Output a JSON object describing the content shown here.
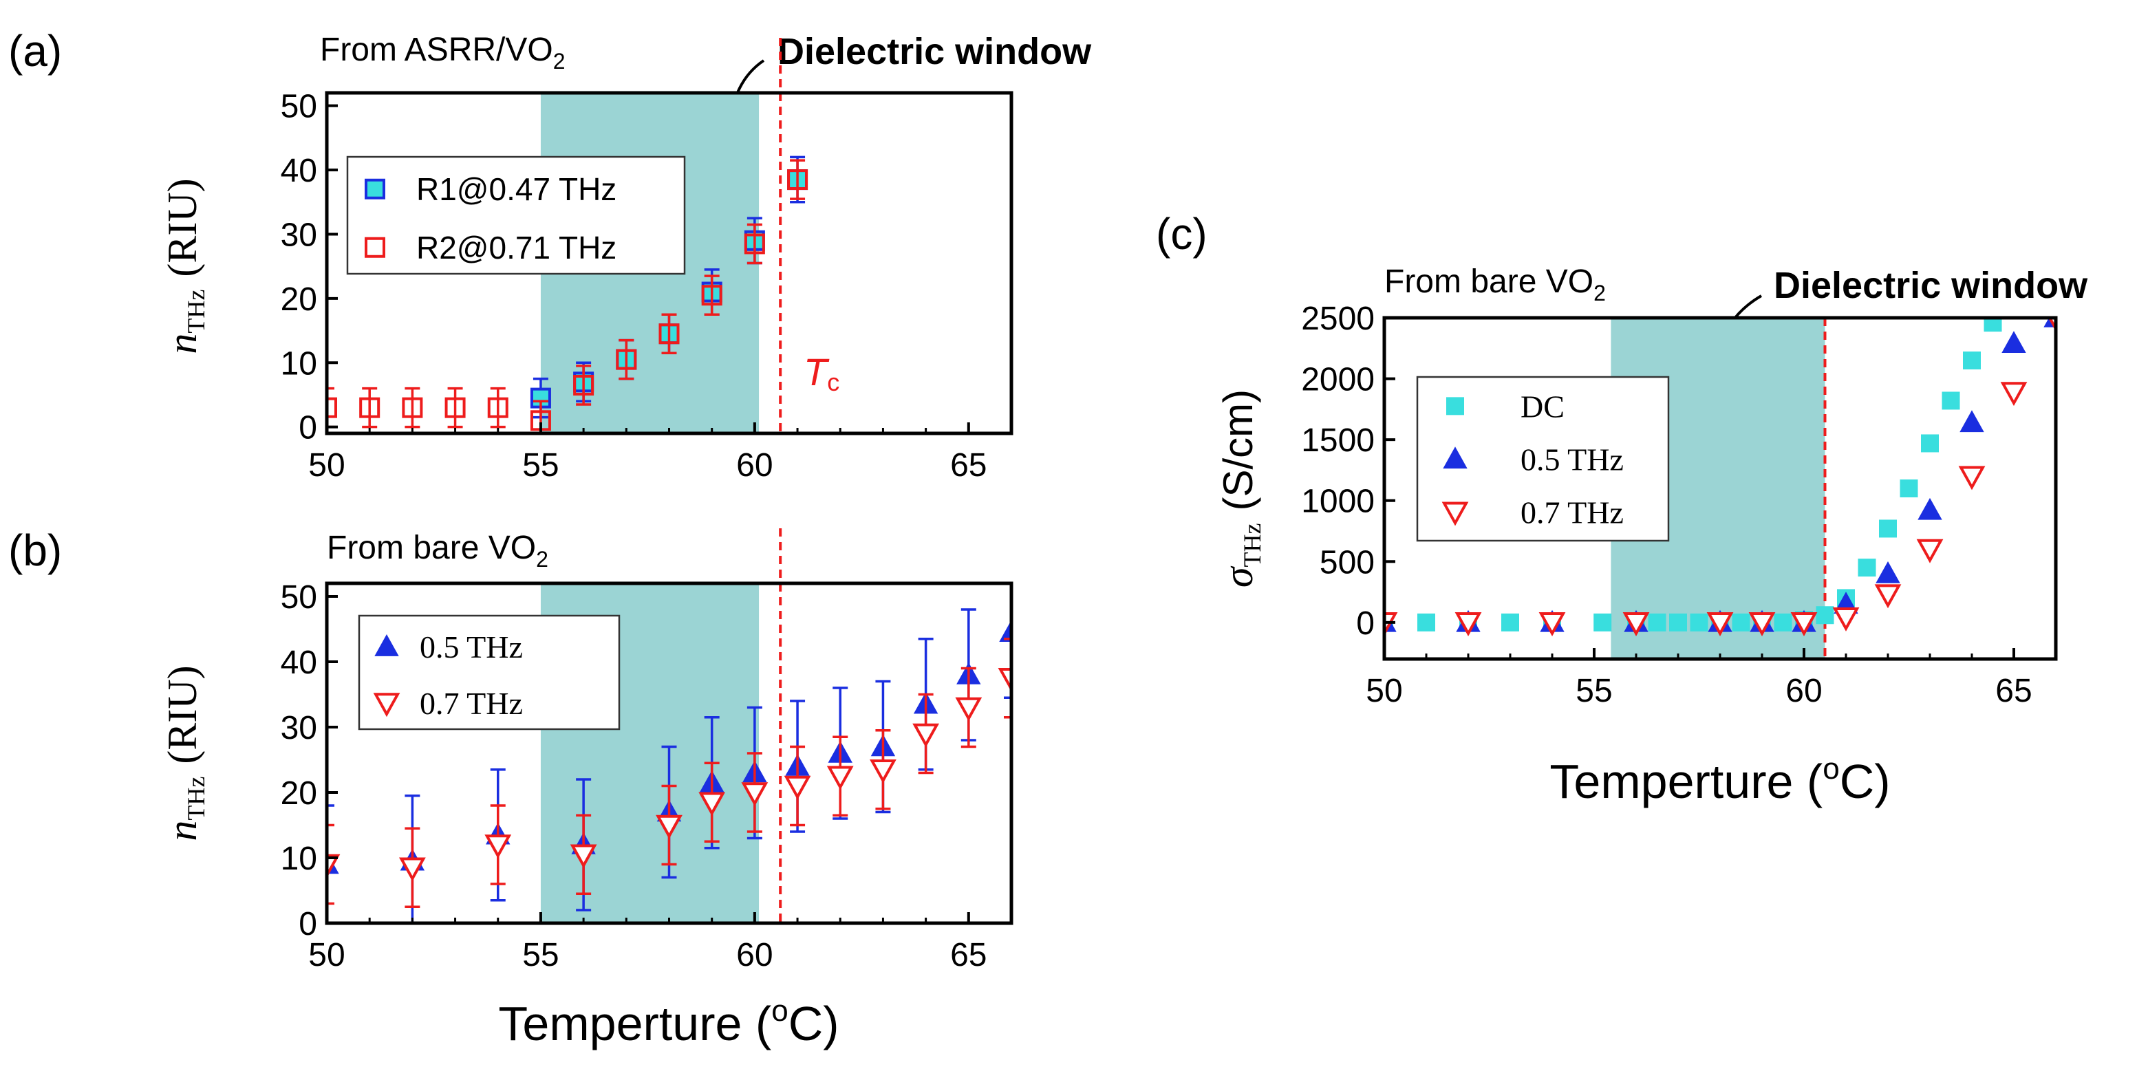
{
  "colors": {
    "window": "#9bd4d4",
    "teal_text": "#149393",
    "blue": "#1a2ee0",
    "red": "#ee1c1c",
    "cyan": "#39dede",
    "frame": "#000000"
  },
  "chart_data": [
    {
      "id": "a",
      "panel_label": "(a)",
      "subtitle": "From ASRR/VO",
      "subtitle_sub": "2",
      "annotation": "Dielectric window",
      "tc_label": "T",
      "tc_sub": "c",
      "type": "scatter",
      "xlim": [
        50,
        66
      ],
      "ylim": [
        -1,
        52
      ],
      "xticks": [
        50,
        55,
        60,
        65
      ],
      "yticks": [
        0,
        10,
        20,
        30,
        40,
        50
      ],
      "xlabel": "",
      "ylabel": "n",
      "ylabel_sub": "THz",
      "ylabel_unit": "(RIU)",
      "window": [
        55,
        60.1
      ],
      "tc": 60.6,
      "series": [
        {
          "name": "R1@0.47 THz",
          "marker": "square",
          "x": [
            55,
            56,
            57,
            58,
            59,
            60,
            61
          ],
          "y": [
            4.5,
            7,
            10.5,
            14.5,
            21,
            29,
            38.5
          ],
          "err": [
            3,
            3,
            3,
            3,
            3.5,
            3.5,
            3.5
          ]
        },
        {
          "name": "R2@0.71 THz",
          "marker": "square",
          "x": [
            50,
            51,
            52,
            53,
            54,
            55,
            56,
            57,
            58,
            59,
            60,
            61
          ],
          "y": [
            3,
            3,
            3,
            3,
            3,
            1,
            6.5,
            10.5,
            14.5,
            20.5,
            28.5,
            38.5
          ],
          "err": [
            3,
            3,
            3,
            3,
            3,
            3,
            3,
            3,
            3,
            3,
            3,
            3
          ]
        }
      ]
    },
    {
      "id": "b",
      "panel_label": "(b)",
      "subtitle": "From bare VO",
      "subtitle_sub": "2",
      "type": "scatter",
      "xlim": [
        50,
        66
      ],
      "ylim": [
        0,
        52
      ],
      "xticks": [
        50,
        55,
        60,
        65
      ],
      "yticks": [
        0,
        10,
        20,
        30,
        40,
        50
      ],
      "xlabel": "Temperture (",
      "xlabel_sup": "o",
      "xlabel_end": "C)",
      "ylabel": "n",
      "ylabel_sub": "THz",
      "ylabel_unit": "(RIU)",
      "window": [
        55,
        60.1
      ],
      "tc": 60.6,
      "series": [
        {
          "name": "0.5 THz",
          "marker": "triangle-up",
          "x": [
            50,
            52,
            54,
            56,
            58,
            59,
            60,
            61,
            62,
            63,
            64,
            65,
            66
          ],
          "y": [
            9,
            9.5,
            13.5,
            12,
            17,
            21.5,
            23,
            24,
            26,
            27,
            33.5,
            38,
            44.5
          ],
          "err": [
            9,
            10,
            10,
            10,
            10,
            10,
            10,
            10,
            10,
            10,
            10,
            10,
            10
          ]
        },
        {
          "name": "0.7 THz",
          "marker": "triangle-down",
          "x": [
            50,
            52,
            54,
            56,
            58,
            59,
            60,
            61,
            62,
            63,
            64,
            65,
            66
          ],
          "y": [
            9,
            8.5,
            12,
            10.5,
            15,
            18.5,
            20,
            21,
            22.5,
            23.5,
            29,
            33,
            37.5
          ],
          "err": [
            6,
            6,
            6,
            6,
            6,
            6,
            6,
            6,
            6,
            6,
            6,
            6,
            6
          ]
        }
      ]
    },
    {
      "id": "c",
      "panel_label": "(c)",
      "subtitle": "From bare VO",
      "subtitle_sub": "2",
      "annotation": "Dielectric window",
      "type": "scatter",
      "xlim": [
        50,
        66
      ],
      "ylim": [
        -300,
        2500
      ],
      "xticks": [
        50,
        55,
        60,
        65
      ],
      "yticks": [
        0,
        500,
        1000,
        1500,
        2000,
        2500
      ],
      "xlabel": "Temperture (",
      "xlabel_sup": "o",
      "xlabel_end": "C)",
      "ylabel": "σ",
      "ylabel_sub": "THz",
      "ylabel_unit": "(S/cm)",
      "window": [
        55.4,
        60.5
      ],
      "tc": 60.5,
      "series": [
        {
          "name": "DC",
          "marker": "square",
          "x": [
            50,
            51,
            52,
            53,
            54,
            55.2,
            56,
            56.5,
            57,
            57.5,
            58,
            58.5,
            59,
            59.5,
            60,
            60.5,
            61,
            61.5,
            62,
            62.5,
            63,
            63.5,
            64,
            64.5
          ],
          "y": [
            0,
            0,
            0,
            0,
            0,
            0,
            0,
            0,
            0,
            0,
            0,
            0,
            0,
            0,
            20,
            60,
            200,
            450,
            770,
            1100,
            1470,
            1820,
            2150,
            2460
          ]
        },
        {
          "name": "0.5 THz",
          "marker": "triangle-up",
          "x": [
            50,
            52,
            54,
            56,
            58,
            59,
            60,
            61,
            62,
            63,
            64,
            65,
            66
          ],
          "y": [
            0,
            0,
            0,
            0,
            0,
            0,
            0,
            150,
            400,
            920,
            1640,
            2290,
            2500
          ]
        },
        {
          "name": "0.7 THz",
          "marker": "triangle-down",
          "x": [
            50,
            52,
            54,
            56,
            58,
            59,
            60,
            61,
            62,
            63,
            64,
            65,
            66
          ],
          "y": [
            0,
            0,
            0,
            0,
            0,
            0,
            0,
            40,
            230,
            600,
            1200,
            1890,
            2500
          ]
        }
      ]
    }
  ]
}
